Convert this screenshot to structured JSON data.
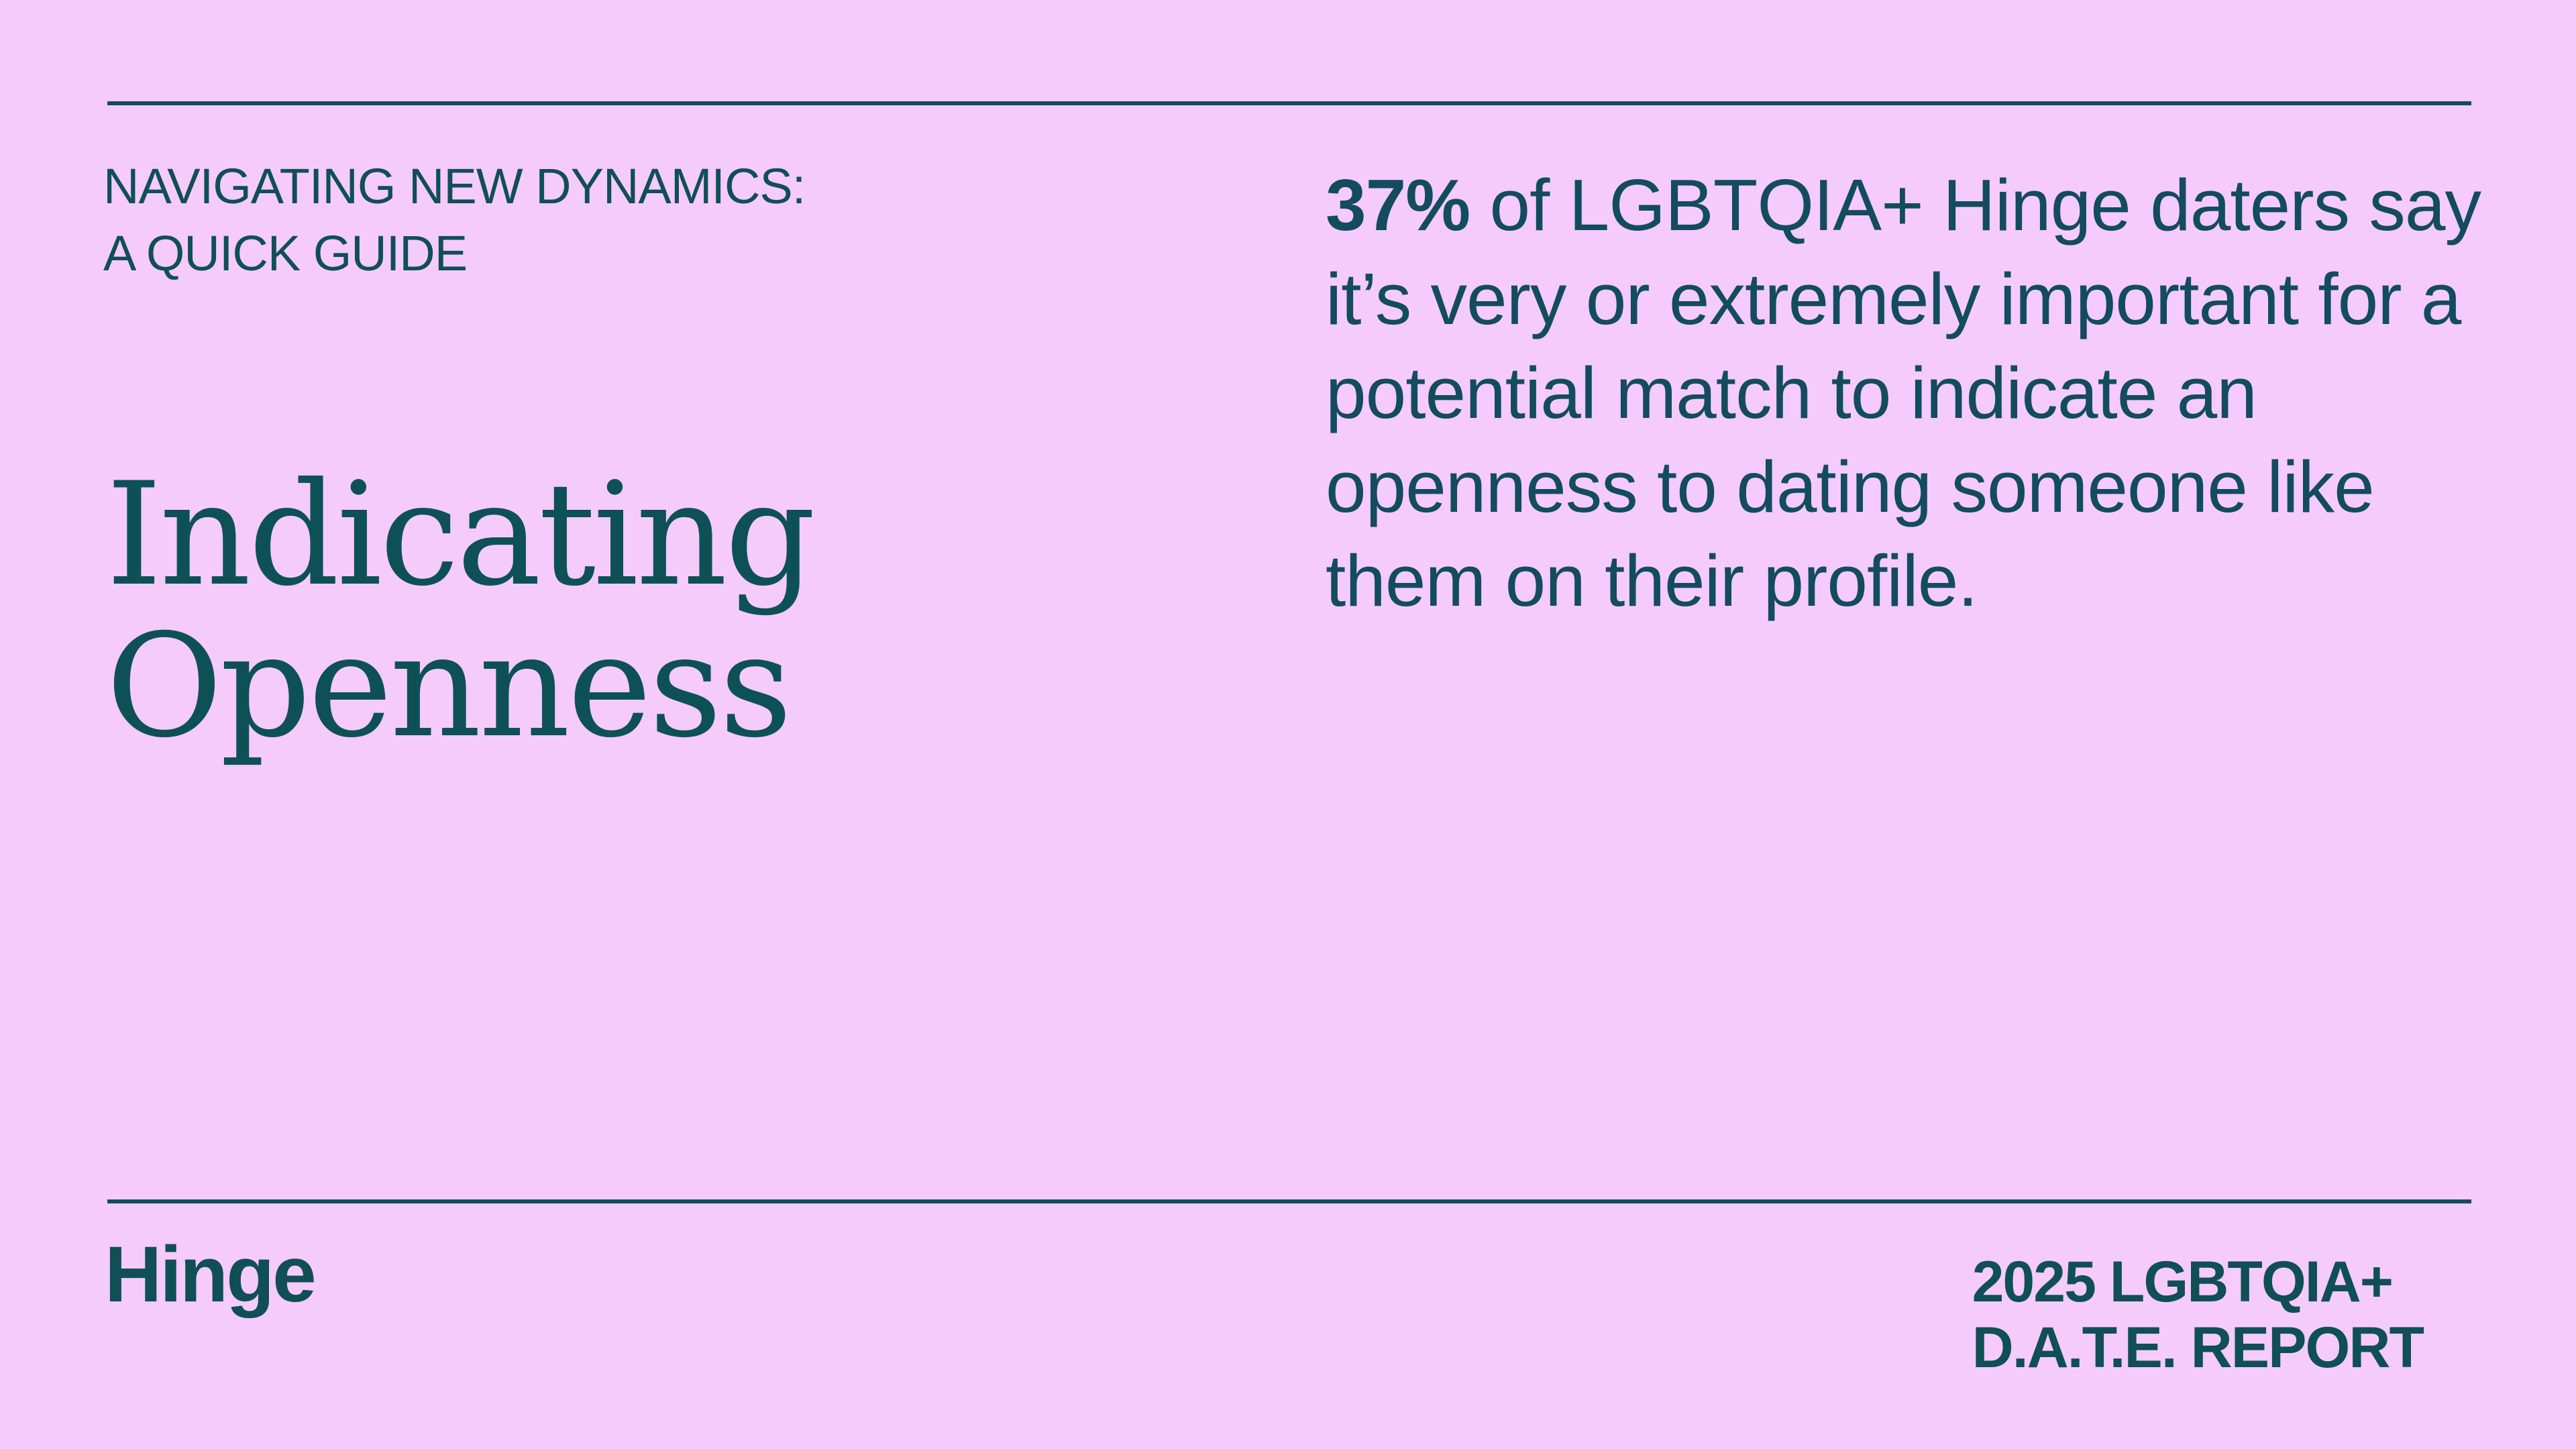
{
  "eyebrow": {
    "line1": "NAVIGATING NEW DYNAMICS:",
    "line2": "A QUICK GUIDE"
  },
  "title": {
    "line1": "Indicating",
    "line2": "Openness"
  },
  "stat": {
    "number": "37%",
    "text": " of LGBTQIA+ Hinge daters say it’s very or extremely important for a potential match to indicate an openness to dating someone like them on their profile."
  },
  "footer": {
    "logo": "Hinge",
    "report_line1": "2025 LGBTQIA+",
    "report_line2": "D.A.T.E. REPORT"
  },
  "colors": {
    "background": "#F5CBFC",
    "ink": "#0F4F55"
  }
}
